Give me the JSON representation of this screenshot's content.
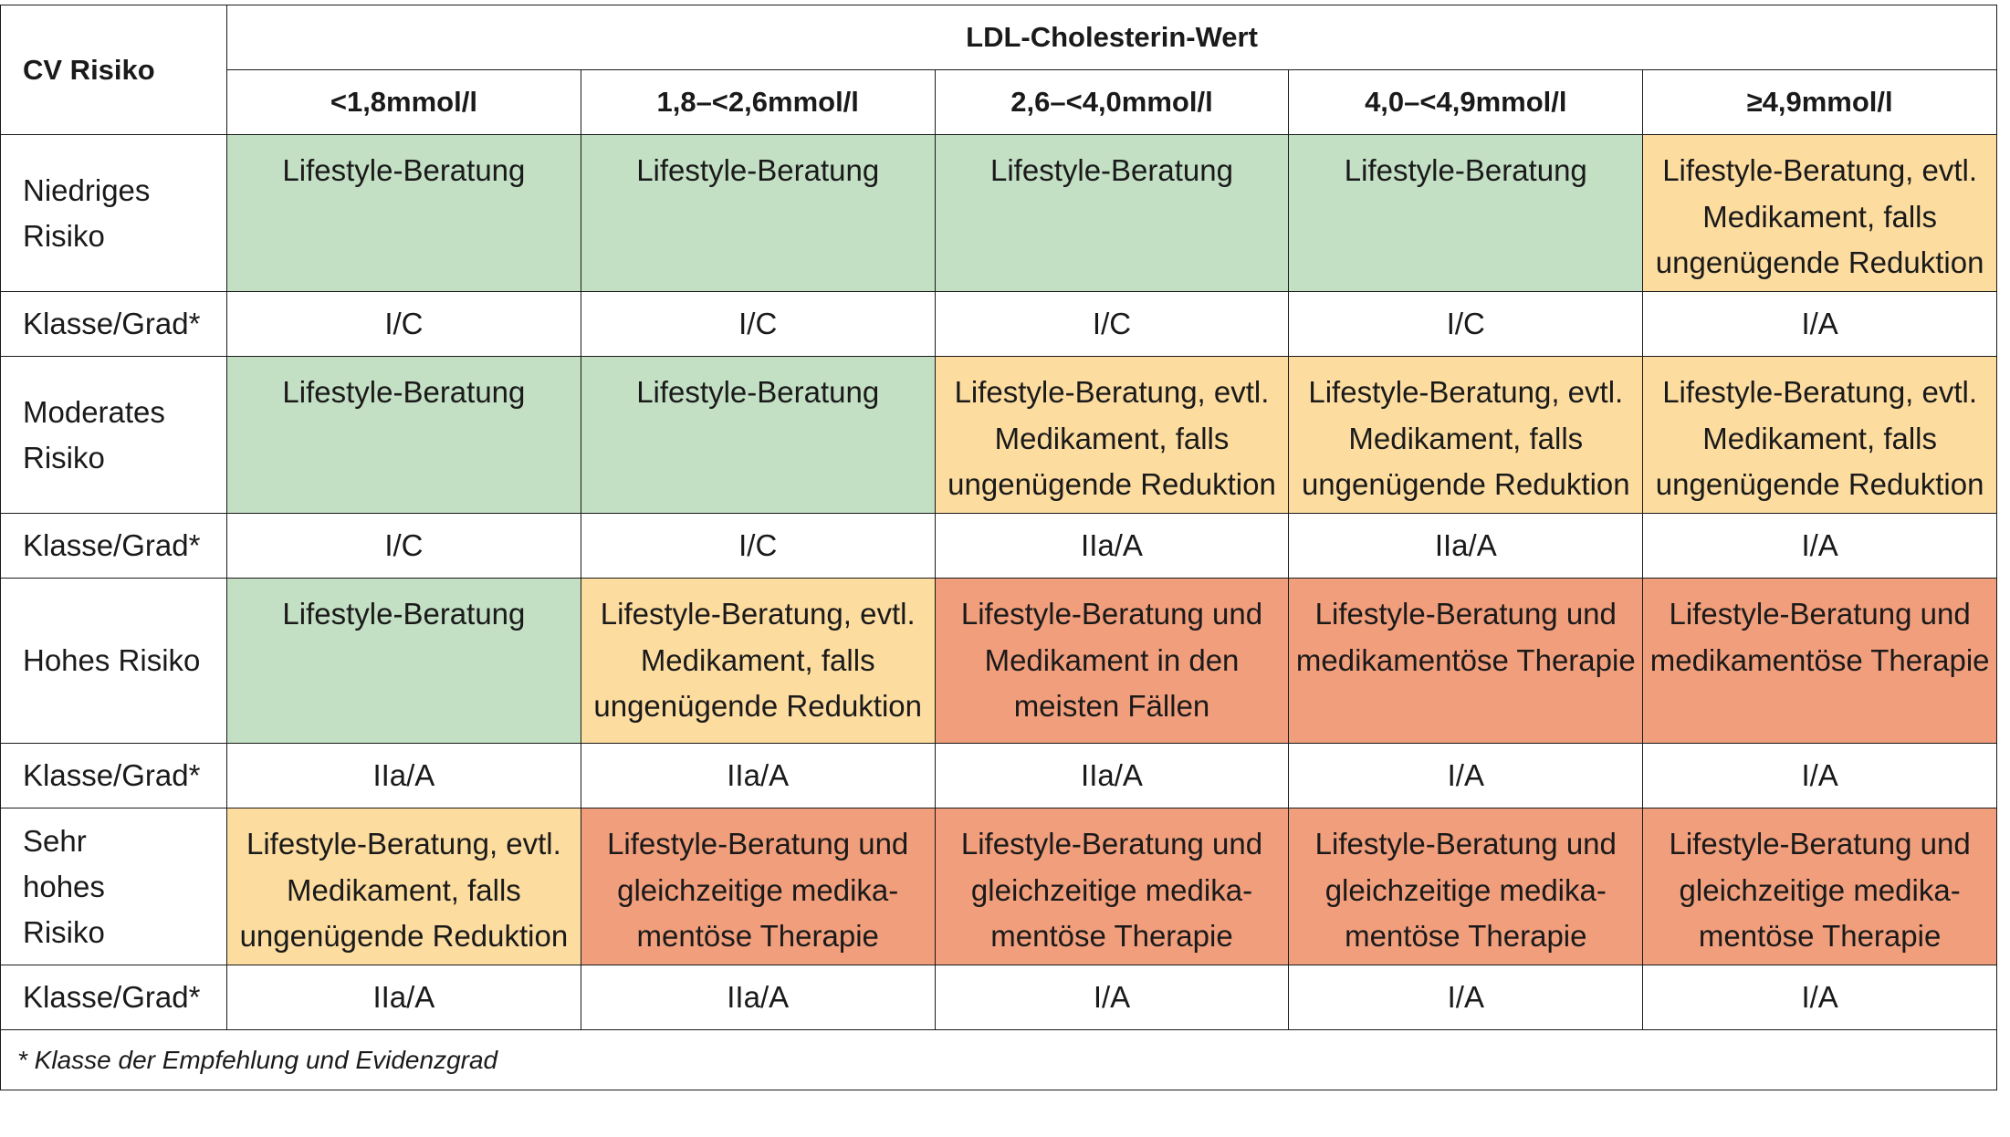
{
  "header": {
    "cv_label": "CV Risiko",
    "ldl_label": "LDL-Cholesterin-Wert",
    "ranges": [
      "<1,8mmol/l",
      "1,8–<2,6mmol/l",
      "2,6–<4,0mmol/l",
      "4,0–<4,9mmol/l",
      "≥4,9mmol/l"
    ]
  },
  "grade_label": "Klasse/Grad*",
  "rows": [
    {
      "label": "Niedriges Risiko",
      "cells": [
        {
          "text": "Lifestyle-Beratung",
          "level": "green"
        },
        {
          "text": "Lifestyle-Beratung",
          "level": "green"
        },
        {
          "text": "Lifestyle-Beratung",
          "level": "green"
        },
        {
          "text": "Lifestyle-Beratung",
          "level": "green"
        },
        {
          "text": "Lifestyle-Beratung, evtl. Medikament, falls ungenügende Reduktion",
          "level": "yellow"
        }
      ],
      "grades": [
        "I/C",
        "I/C",
        "I/C",
        "I/C",
        "I/A"
      ]
    },
    {
      "label": "Moderates Risiko",
      "cells": [
        {
          "text": "Lifestyle-Beratung",
          "level": "green"
        },
        {
          "text": "Lifestyle-Beratung",
          "level": "green"
        },
        {
          "text": "Lifestyle-Beratung, evtl. Medikament, falls ungenügende Reduktion",
          "level": "yellow"
        },
        {
          "text": "Lifestyle-Beratung, evtl. Medikament, falls ungenügende Reduktion",
          "level": "yellow"
        },
        {
          "text": "Lifestyle-Beratung, evtl. Medikament, falls ungenügende Reduktion",
          "level": "yellow"
        }
      ],
      "grades": [
        "I/C",
        "I/C",
        "IIa/A",
        "IIa/A",
        "I/A"
      ]
    },
    {
      "label": "Hohes Risiko",
      "cells": [
        {
          "text": "Lifestyle-Beratung",
          "level": "green"
        },
        {
          "text": "Lifestyle-Beratung, evtl. Medikament, falls ungenügende Reduktion",
          "level": "yellow"
        },
        {
          "text": "Lifestyle-Beratung und Medikament in den meisten Fällen",
          "level": "red"
        },
        {
          "text": "Lifestyle-Beratung und medikamentöse Therapie",
          "level": "red"
        },
        {
          "text": "Lifestyle-Beratung und medikamentöse Therapie",
          "level": "red"
        }
      ],
      "grades": [
        "IIa/A",
        "IIa/A",
        "IIa/A",
        "I/A",
        "I/A"
      ]
    },
    {
      "label": "Sehr hohes Risiko",
      "cells": [
        {
          "text": "Lifestyle-Beratung, evtl. Medikament, falls ungenügende Reduktion",
          "level": "yellow"
        },
        {
          "text": "Lifestyle-Beratung und gleichzeitige medika-mentöse Therapie",
          "level": "red"
        },
        {
          "text": "Lifestyle-Beratung und gleichzeitige medika-mentöse Therapie",
          "level": "red"
        },
        {
          "text": "Lifestyle-Beratung und gleichzeitige medika-mentöse Therapie",
          "level": "red"
        },
        {
          "text": "Lifestyle-Beratung und gleichzeitige medika-mentöse Therapie",
          "level": "red"
        }
      ],
      "grades": [
        "IIa/A",
        "IIa/A",
        "I/A",
        "I/A",
        "I/A"
      ]
    }
  ],
  "colors": {
    "green": "#c3dfc4",
    "yellow": "#fddc9f",
    "red": "#f19e7c"
  },
  "footnote": "* Klasse der Empfehlung und Evidenzgrad"
}
